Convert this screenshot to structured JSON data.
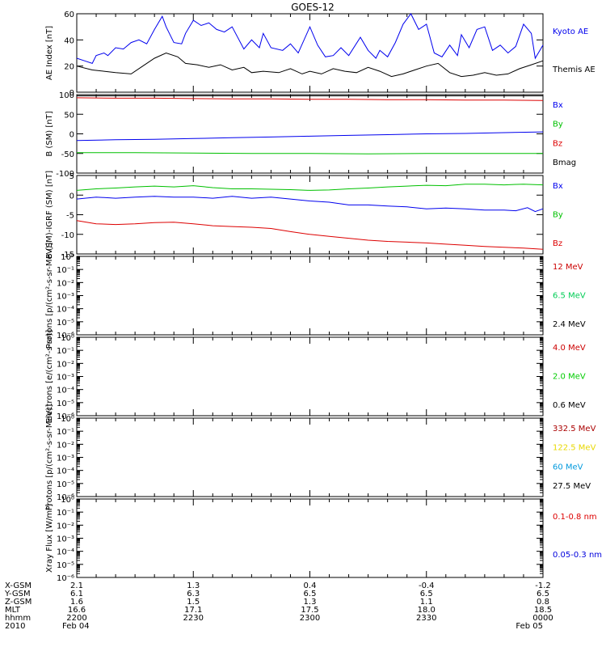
{
  "title": "GOES-12",
  "chart_data": {
    "type": "line",
    "x_start": "2010-02-04 22:00",
    "x_end": "2010-02-05 00:00",
    "panels": [
      {
        "ylabel": "AE Index [nT]",
        "ylim": [
          0,
          60
        ],
        "log": false,
        "ticks": [
          0,
          20,
          40,
          60
        ],
        "tick_labels": [
          "0",
          "20",
          "40",
          "60"
        ],
        "legend": [
          {
            "label": "Kyoto AE",
            "color": "#0000ee"
          },
          {
            "label": "Themis AE",
            "color": "#000000"
          }
        ],
        "series": [
          {
            "name": "Kyoto AE",
            "color": "#0000ee",
            "x": [
              0,
              2,
              4,
              5,
              7,
              8,
              10,
              12,
              14,
              16,
              18,
              20,
              22,
              23,
              25,
              27,
              28,
              30,
              32,
              34,
              36,
              38,
              40,
              43,
              45,
              47,
              48,
              50,
              53,
              55,
              57,
              60,
              62,
              64,
              66,
              68,
              70,
              73,
              75,
              77,
              78,
              80,
              82,
              84,
              86,
              88,
              90,
              92,
              94,
              96,
              98,
              99,
              101,
              103,
              105,
              107,
              109,
              111,
              113,
              115,
              117,
              118,
              120
            ],
            "y": [
              26,
              24,
              22,
              28,
              30,
              28,
              34,
              33,
              38,
              40,
              37,
              48,
              58,
              50,
              38,
              37,
              45,
              55,
              51,
              53,
              48,
              46,
              50,
              33,
              40,
              34,
              45,
              34,
              32,
              37,
              30,
              50,
              36,
              27,
              28,
              34,
              28,
              42,
              32,
              26,
              32,
              27,
              38,
              52,
              60,
              48,
              52,
              30,
              27,
              36,
              28,
              44,
              34,
              48,
              50,
              32,
              36,
              30,
              35,
              52,
              45,
              26,
              36
            ]
          },
          {
            "name": "Themis AE",
            "color": "#000000",
            "x": [
              0,
              4,
              7,
              10,
              14,
              17,
              20,
              23,
              26,
              28,
              31,
              34,
              37,
              40,
              43,
              45,
              48,
              52,
              55,
              58,
              60,
              63,
              66,
              69,
              72,
              75,
              78,
              81,
              84,
              87,
              90,
              93,
              96,
              99,
              102,
              105,
              108,
              111,
              114,
              117,
              120
            ],
            "y": [
              20,
              17,
              16,
              15,
              14,
              20,
              26,
              30,
              27,
              22,
              21,
              19,
              21,
              17,
              19,
              15,
              16,
              15,
              18,
              14,
              16,
              14,
              18,
              16,
              15,
              19,
              16,
              12,
              14,
              17,
              20,
              22,
              15,
              12,
              13,
              15,
              13,
              14,
              18,
              21,
              24
            ]
          }
        ]
      },
      {
        "ylabel": "B (SM) [nT]",
        "ylim": [
          -100,
          100
        ],
        "log": false,
        "ticks": [
          -100,
          -50,
          0,
          50,
          100
        ],
        "tick_labels": [
          "-100",
          "-50",
          "0",
          "50",
          "100"
        ],
        "legend": [
          {
            "label": "Bx",
            "color": "#0000ee"
          },
          {
            "label": "By",
            "color": "#00c000"
          },
          {
            "label": "Bz",
            "color": "#dd0000"
          },
          {
            "label": "Bmag",
            "color": "#000000"
          }
        ],
        "series": [
          {
            "name": "Bx",
            "color": "#0000ee",
            "x": [
              0,
              10,
              20,
              30,
              40,
              50,
              60,
              70,
              80,
              90,
              100,
              110,
              120
            ],
            "y": [
              -17,
              -15,
              -14,
              -12,
              -10,
              -8,
              -6,
              -4,
              -2,
              0,
              1,
              3,
              5
            ]
          },
          {
            "name": "By",
            "color": "#00c000",
            "x": [
              0,
              15,
              30,
              45,
              60,
              75,
              90,
              105,
              120
            ],
            "y": [
              -48,
              -48,
              -49,
              -50,
              -50,
              -51,
              -50,
              -50,
              -50
            ]
          },
          {
            "name": "Bz",
            "color": "#dd0000",
            "x": [
              0,
              10,
              20,
              30,
              40,
              50,
              60,
              70,
              80,
              90,
              100,
              110,
              120
            ],
            "y": [
              92,
              91,
              91,
              90,
              89,
              89,
              88,
              88,
              87,
              87,
              86,
              86,
              85
            ]
          },
          {
            "name": "Bmag",
            "color": "#000000",
            "x": [
              0,
              10,
              20,
              30,
              40,
              50,
              60,
              70,
              80,
              90,
              100,
              110,
              120
            ],
            "y": [
              97,
              97,
              97,
              97,
              97,
              97,
              97,
              97,
              97,
              97,
              97,
              97,
              97
            ]
          }
        ]
      },
      {
        "ylabel": "B (SM)-IGRF (SM) [nT]",
        "ylim": [
          -15,
          5
        ],
        "log": false,
        "ticks": [
          -15,
          -10,
          -5,
          0,
          5
        ],
        "tick_labels": [
          "-15",
          "-10",
          "-5",
          "0",
          "5"
        ],
        "legend": [
          {
            "label": "Bx",
            "color": "#0000ee"
          },
          {
            "label": "By",
            "color": "#00c000"
          },
          {
            "label": "Bz",
            "color": "#dd0000"
          }
        ],
        "series": [
          {
            "name": "Bx",
            "color": "#0000ee",
            "x": [
              0,
              5,
              10,
              15,
              20,
              25,
              30,
              35,
              40,
              45,
              50,
              55,
              60,
              65,
              70,
              75,
              80,
              85,
              90,
              95,
              100,
              105,
              110,
              113,
              116,
              118,
              120
            ],
            "y": [
              -1,
              -0.5,
              -0.8,
              -0.5,
              -0.3,
              -0.5,
              -0.5,
              -0.8,
              -0.3,
              -0.8,
              -0.5,
              -1,
              -1.5,
              -1.8,
              -2.5,
              -2.5,
              -2.8,
              -3,
              -3.5,
              -3.3,
              -3.5,
              -3.8,
              -3.8,
              -4,
              -3.2,
              -4.2,
              -3.5
            ]
          },
          {
            "name": "By",
            "color": "#00c000",
            "x": [
              0,
              5,
              10,
              15,
              20,
              25,
              30,
              35,
              40,
              45,
              50,
              55,
              60,
              65,
              70,
              75,
              80,
              85,
              90,
              95,
              100,
              105,
              110,
              115,
              120
            ],
            "y": [
              1.2,
              1.6,
              1.8,
              2.1,
              2.3,
              2.1,
              2.4,
              1.9,
              1.6,
              1.6,
              1.5,
              1.4,
              1.2,
              1.3,
              1.6,
              1.8,
              2.1,
              2.3,
              2.5,
              2.4,
              2.8,
              2.8,
              2.6,
              2.8,
              2.6
            ]
          },
          {
            "name": "Bz",
            "color": "#dd0000",
            "x": [
              0,
              5,
              10,
              15,
              20,
              25,
              30,
              35,
              40,
              45,
              50,
              55,
              60,
              65,
              70,
              75,
              80,
              85,
              90,
              95,
              100,
              105,
              110,
              115,
              120
            ],
            "y": [
              -6.5,
              -7.3,
              -7.5,
              -7.3,
              -7,
              -6.9,
              -7.3,
              -7.8,
              -8,
              -8.2,
              -8.5,
              -9.3,
              -10,
              -10.5,
              -11,
              -11.5,
              -11.8,
              -12,
              -12.2,
              -12.5,
              -12.8,
              -13.1,
              -13.3,
              -13.5,
              -13.8
            ]
          }
        ]
      },
      {
        "ylabel": "Protons [p/(cm²-s-sr-MeV)]",
        "ylim": [
          1e-06,
          1
        ],
        "log": true,
        "ticks": [
          -6,
          -5,
          -4,
          -3,
          -2,
          -1,
          0
        ],
        "tick_labels": [
          "10⁻⁶",
          "10⁻⁵",
          "10⁻⁴",
          "10⁻³",
          "10⁻²",
          "10⁻¹",
          "10⁰"
        ],
        "legend": [
          {
            "label": "12 MeV",
            "color": "#cc0000"
          },
          {
            "label": "6.5 MeV",
            "color": "#00cc55"
          },
          {
            "label": "2.4 MeV",
            "color": "#000000"
          }
        ],
        "series": []
      },
      {
        "ylabel": "Electrons [e/(cm²-s-sr)]",
        "ylim": [
          1e-06,
          1
        ],
        "log": true,
        "ticks": [
          -6,
          -5,
          -4,
          -3,
          -2,
          -1,
          0
        ],
        "tick_labels": [
          "10⁻⁶",
          "10⁻⁵",
          "10⁻⁴",
          "10⁻³",
          "10⁻²",
          "10⁻¹",
          "10⁰"
        ],
        "legend": [
          {
            "label": "4.0 MeV",
            "color": "#cc0000"
          },
          {
            "label": "2.0 MeV",
            "color": "#00cc00"
          },
          {
            "label": "0.6 MeV",
            "color": "#000000"
          }
        ],
        "series": []
      },
      {
        "ylabel": "Protons [p/(cm²-s-sr-MeV)]",
        "ylim": [
          1e-06,
          1
        ],
        "log": true,
        "ticks": [
          -6,
          -5,
          -4,
          -3,
          -2,
          -1,
          0
        ],
        "tick_labels": [
          "10⁻⁶",
          "10⁻⁵",
          "10⁻⁴",
          "10⁻³",
          "10⁻²",
          "10⁻¹",
          "10⁰"
        ],
        "legend": [
          {
            "label": "332.5 MeV",
            "color": "#aa0000"
          },
          {
            "label": "122.5 MeV",
            "color": "#e8d800"
          },
          {
            "label": "60 MeV",
            "color": "#0099dd"
          },
          {
            "label": "27.5 MeV",
            "color": "#000000"
          }
        ],
        "series": []
      },
      {
        "ylabel": "Xray Flux [W/m²]",
        "ylim": [
          1e-06,
          1
        ],
        "log": true,
        "ticks": [
          -6,
          -5,
          -4,
          -3,
          -2,
          -1,
          0
        ],
        "tick_labels": [
          "10⁻⁶",
          "10⁻⁵",
          "10⁻⁴",
          "10⁻³",
          "10⁻²",
          "10⁻¹",
          "10⁰"
        ],
        "legend": [
          {
            "label": "0.1-0.8 nm",
            "color": "#dd0000"
          },
          {
            "label": "0.05-0.3 nm",
            "color": "#0000dd"
          }
        ],
        "series": []
      }
    ],
    "x_axis_table": {
      "row_labels": [
        "X-GSM",
        "Y-GSM",
        "Z-GSM",
        "MLT",
        "hhmm",
        "2010"
      ],
      "columns": [
        {
          "x": 0,
          "values": [
            "2.1",
            "6.1",
            "1.6",
            "16.6",
            "2200",
            "Feb 04"
          ]
        },
        {
          "x": 30,
          "values": [
            "1.3",
            "6.3",
            "1.5",
            "17.1",
            "2230",
            ""
          ]
        },
        {
          "x": 60,
          "values": [
            "0.4",
            "6.5",
            "1.3",
            "17.5",
            "2300",
            ""
          ]
        },
        {
          "x": 90,
          "values": [
            "-0.4",
            "6.5",
            "1.1",
            "18.0",
            "2330",
            ""
          ]
        },
        {
          "x": 120,
          "values": [
            "-1.2",
            "6.5",
            "0.8",
            "18.5",
            "0000",
            "Feb 05"
          ]
        }
      ]
    }
  }
}
